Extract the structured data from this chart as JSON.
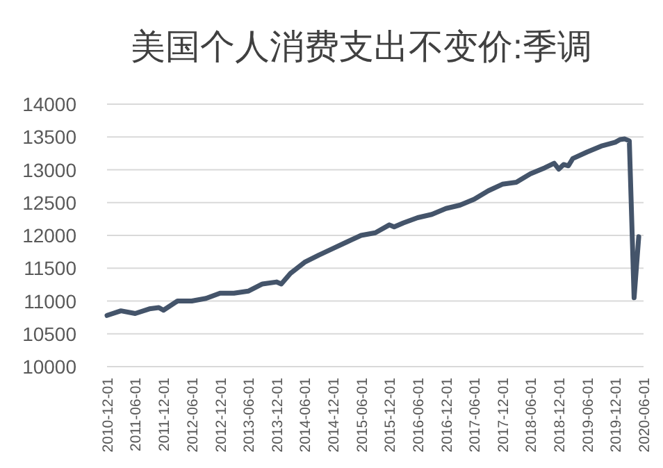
{
  "chart_data": {
    "type": "line",
    "title": "美国个人消费支出不变价:季调",
    "series": [
      {
        "color": "#44546a",
        "x": [
          "2010-12",
          "2011-03",
          "2011-06",
          "2011-09",
          "2011-11",
          "2011-12",
          "2012-03",
          "2012-06",
          "2012-09",
          "2012-12",
          "2013-03",
          "2013-06",
          "2013-09",
          "2013-12",
          "2014-01",
          "2014-03",
          "2014-06",
          "2014-09",
          "2014-12",
          "2015-03",
          "2015-06",
          "2015-09",
          "2015-12",
          "2016-01",
          "2016-03",
          "2016-06",
          "2016-09",
          "2016-12",
          "2017-03",
          "2017-06",
          "2017-09",
          "2017-12",
          "2018-03",
          "2018-06",
          "2018-09",
          "2018-11",
          "2018-12",
          "2019-01",
          "2019-02",
          "2019-03",
          "2019-06",
          "2019-09",
          "2019-12",
          "2020-01",
          "2020-02",
          "2020-03",
          "2020-04",
          "2020-05"
        ],
        "values": [
          10780,
          10850,
          10810,
          10880,
          10900,
          10860,
          11000,
          11000,
          11040,
          11120,
          11120,
          11150,
          11260,
          11290,
          11260,
          11420,
          11590,
          11700,
          11800,
          11900,
          12000,
          12040,
          12160,
          12130,
          12190,
          12270,
          12320,
          12410,
          12460,
          12550,
          12680,
          12780,
          12810,
          12940,
          13030,
          13100,
          13010,
          13080,
          13060,
          13170,
          13270,
          13360,
          13420,
          13460,
          13470,
          13440,
          11050,
          11980
        ]
      }
    ],
    "xlim": [
      "2010-12-01",
      "2020-06-01"
    ],
    "xticks": [
      "2010-12-01",
      "2011-06-01",
      "2011-12-01",
      "2012-06-01",
      "2012-12-01",
      "2013-06-01",
      "2013-12-01",
      "2014-06-01",
      "2014-12-01",
      "2015-06-01",
      "2015-12-01",
      "2016-06-01",
      "2016-12-01",
      "2017-06-01",
      "2017-12-01",
      "2018-06-01",
      "2018-12-01",
      "2019-06-01",
      "2019-12-01",
      "2020-06-01"
    ],
    "ylim": [
      10000,
      14000
    ],
    "yticks": [
      10000,
      10500,
      11000,
      11500,
      12000,
      12500,
      13000,
      13500,
      14000
    ],
    "grid": "y",
    "marker": "none",
    "line_style": "solid"
  }
}
